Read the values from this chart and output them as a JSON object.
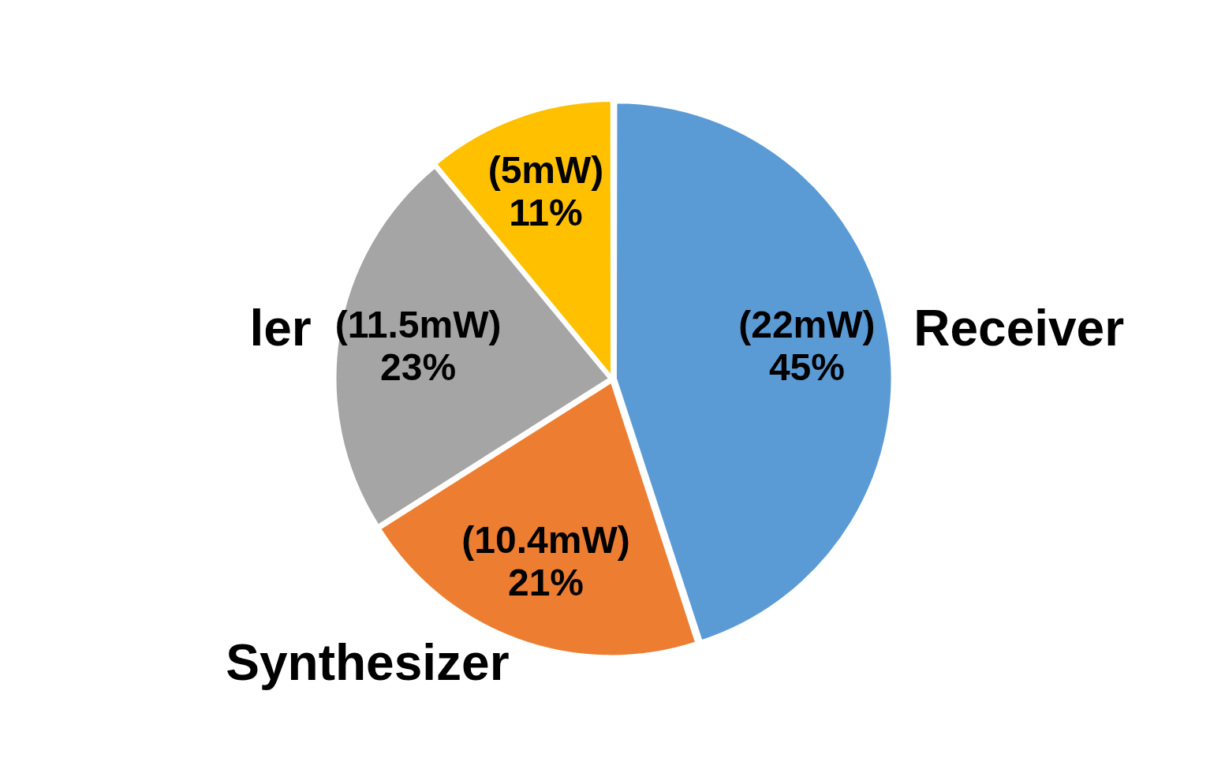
{
  "chart_data": {
    "type": "pie",
    "categories": [
      "Receiver",
      "Synthesizer",
      "ler",
      null
    ],
    "values": [
      45,
      21,
      23,
      11
    ],
    "colors": [
      "#5b9bd5",
      "#ed7d31",
      "#a5a5a5",
      "#ffc000"
    ],
    "value_labels": [
      "(22mW)\n45%",
      "(10.4mW)\n21%",
      "(11.5mW)\n23%",
      "(5mW)\n11%"
    ],
    "legend": false
  }
}
